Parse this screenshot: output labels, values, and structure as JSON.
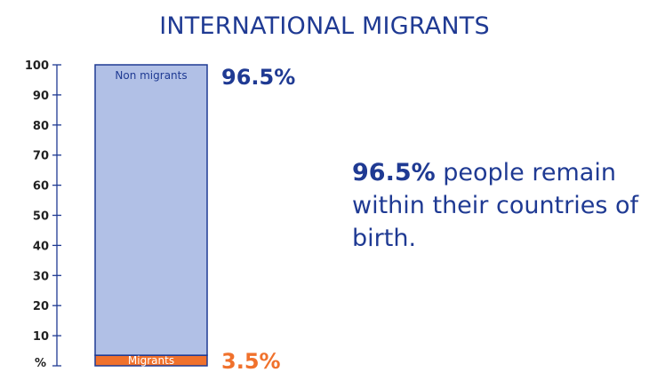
{
  "chart_data": {
    "type": "bar",
    "title": "INTERNATIONAL MIGRANTS",
    "ylabel": "%",
    "ylim": [
      0,
      100
    ],
    "yticks": [
      10,
      20,
      30,
      40,
      50,
      60,
      70,
      80,
      90,
      100
    ],
    "stacked": true,
    "series": [
      {
        "name": "Migrants",
        "value": 3.5,
        "value_label": "3.5%",
        "color": "#f0712c"
      },
      {
        "name": "Non migrants",
        "value": 96.5,
        "value_label": "96.5%",
        "color": "#b1c0e6"
      }
    ],
    "axis_color": "#1f3a93"
  },
  "annotation": {
    "highlight": "96.5%",
    "text": " people remain within their countries of birth."
  }
}
